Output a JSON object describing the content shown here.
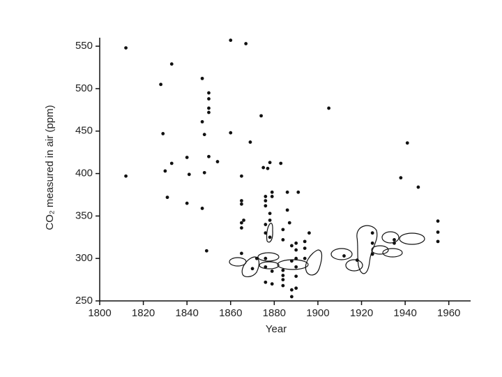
{
  "chart_data": {
    "type": "scatter",
    "x_label": "Year",
    "y_label": "CO₂ measured in air (ppm)",
    "xlim": [
      1800,
      1970
    ],
    "ylim": [
      250,
      560
    ],
    "xticks": [
      1800,
      1820,
      1840,
      1860,
      1880,
      1900,
      1920,
      1940,
      1960
    ],
    "yticks": [
      250,
      300,
      350,
      400,
      450,
      500,
      550
    ],
    "color": "#111111",
    "x": [
      1812,
      1812,
      1828,
      1829,
      1830,
      1831,
      1833,
      1833,
      1840,
      1840,
      1841,
      1847,
      1847,
      1847,
      1848,
      1848,
      1849,
      1850,
      1850,
      1850,
      1850,
      1850,
      1854,
      1860,
      1860,
      1865,
      1865,
      1865,
      1865,
      1865,
      1865,
      1866,
      1867,
      1869,
      1870,
      1872,
      1874,
      1875,
      1876,
      1876,
      1876,
      1876,
      1876,
      1876,
      1876,
      1876,
      1877,
      1878,
      1878,
      1878,
      1878,
      1879,
      1879,
      1879,
      1879,
      1883,
      1884,
      1884,
      1884,
      1884,
      1884,
      1884,
      1886,
      1886,
      1887,
      1888,
      1888,
      1888,
      1888,
      1890,
      1890,
      1890,
      1890,
      1890,
      1890,
      1891,
      1894,
      1894,
      1894,
      1896,
      1905,
      1912,
      1918,
      1925,
      1925,
      1925,
      1935,
      1935,
      1938,
      1941,
      1946,
      1955,
      1955,
      1955
    ],
    "values": [
      548,
      397,
      505,
      447,
      403,
      372,
      529,
      412,
      419,
      365,
      399,
      512,
      461,
      359,
      446,
      401,
      309,
      495,
      488,
      477,
      472,
      420,
      414,
      557,
      448,
      397,
      368,
      364,
      342,
      336,
      306,
      345,
      553,
      437,
      288,
      300,
      468,
      407,
      373,
      368,
      362,
      340,
      330,
      300,
      290,
      272,
      406,
      413,
      353,
      345,
      325,
      378,
      373,
      285,
      270,
      412,
      334,
      322,
      286,
      280,
      275,
      268,
      378,
      357,
      342,
      315,
      297,
      263,
      255,
      318,
      310,
      300,
      290,
      279,
      265,
      378,
      320,
      312,
      300,
      330,
      477,
      303,
      298,
      330,
      318,
      305,
      318,
      322,
      395,
      436,
      384,
      344,
      331,
      320
    ]
  }
}
